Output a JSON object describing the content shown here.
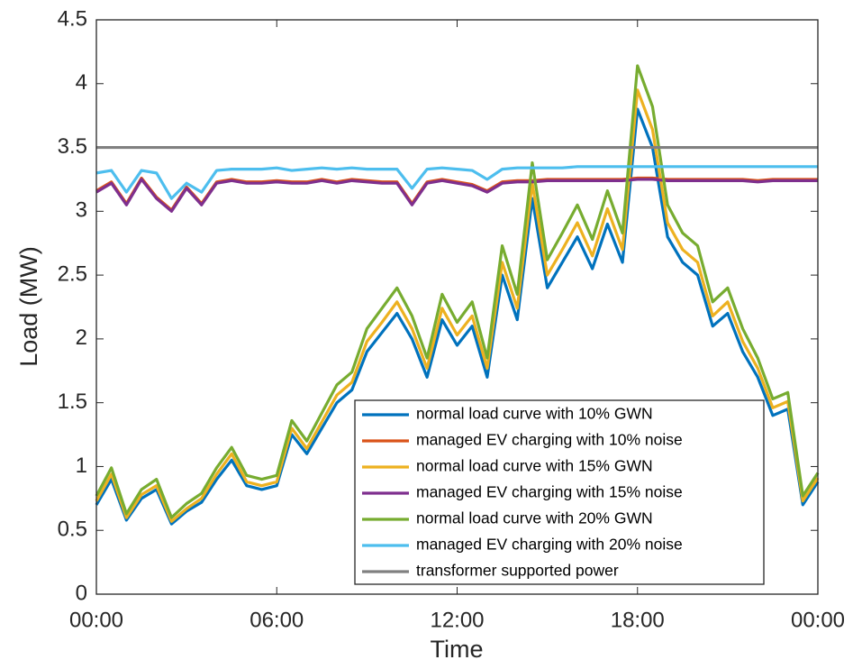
{
  "chart_data": {
    "type": "line",
    "xlabel": "Time",
    "ylabel": "Load (MW)",
    "x": [
      0,
      0.5,
      1,
      1.5,
      2,
      2.5,
      3,
      3.5,
      4,
      4.5,
      5,
      5.5,
      6,
      6.5,
      7,
      7.5,
      8,
      8.5,
      9,
      9.5,
      10,
      10.5,
      11,
      11.5,
      12,
      12.5,
      13,
      13.5,
      14,
      14.5,
      15,
      15.5,
      16,
      16.5,
      17,
      17.5,
      18,
      18.5,
      19,
      19.5,
      20,
      20.5,
      21,
      21.5,
      22,
      22.5,
      23,
      23.5,
      24
    ],
    "xlim": [
      0,
      24
    ],
    "xticks": [
      {
        "value": 0,
        "label": "00:00"
      },
      {
        "value": 6,
        "label": "06:00"
      },
      {
        "value": 12,
        "label": "12:00"
      },
      {
        "value": 18,
        "label": "18:00"
      },
      {
        "value": 24,
        "label": "00:00"
      }
    ],
    "ylim": [
      0,
      4.5
    ],
    "yticks": [
      0,
      0.5,
      1,
      1.5,
      2,
      2.5,
      3,
      3.5,
      4,
      4.5
    ],
    "grid": false,
    "legend_position": "lower-right",
    "series": [
      {
        "name": "normal load curve with 10% GWN",
        "color": "#0072BD",
        "values": [
          0.7,
          0.9,
          0.58,
          0.75,
          0.82,
          0.55,
          0.65,
          0.72,
          0.9,
          1.05,
          0.85,
          0.82,
          0.85,
          1.25,
          1.1,
          1.3,
          1.5,
          1.6,
          1.9,
          2.05,
          2.2,
          2.0,
          1.7,
          2.15,
          1.95,
          2.1,
          1.7,
          2.5,
          2.15,
          3.1,
          2.4,
          2.6,
          2.8,
          2.55,
          2.9,
          2.6,
          3.8,
          3.5,
          2.8,
          2.6,
          2.5,
          2.1,
          2.2,
          1.9,
          1.7,
          1.4,
          1.45,
          0.7,
          0.88
        ]
      },
      {
        "name": "managed EV charging with 10% noise",
        "color": "#D95319",
        "values": [
          3.16,
          3.23,
          3.06,
          3.26,
          3.11,
          3.01,
          3.19,
          3.06,
          3.23,
          3.25,
          3.23,
          3.23,
          3.24,
          3.23,
          3.23,
          3.25,
          3.23,
          3.25,
          3.24,
          3.23,
          3.23,
          3.06,
          3.23,
          3.25,
          3.23,
          3.21,
          3.16,
          3.23,
          3.24,
          3.24,
          3.25,
          3.25,
          3.25,
          3.25,
          3.25,
          3.25,
          3.26,
          3.26,
          3.25,
          3.25,
          3.25,
          3.25,
          3.25,
          3.25,
          3.24,
          3.25,
          3.25,
          3.25,
          3.25
        ]
      },
      {
        "name": "normal load curve with 15% GWN",
        "color": "#EDB120",
        "values": [
          0.73,
          0.94,
          0.6,
          0.78,
          0.85,
          0.57,
          0.67,
          0.75,
          0.94,
          1.1,
          0.88,
          0.85,
          0.88,
          1.3,
          1.14,
          1.35,
          1.56,
          1.66,
          1.98,
          2.13,
          2.29,
          2.08,
          1.77,
          2.24,
          2.03,
          2.18,
          1.77,
          2.6,
          2.24,
          3.22,
          2.5,
          2.7,
          2.91,
          2.65,
          3.02,
          2.7,
          3.95,
          3.64,
          2.91,
          2.7,
          2.6,
          2.18,
          2.29,
          1.98,
          1.77,
          1.46,
          1.51,
          0.73,
          0.91
        ]
      },
      {
        "name": "managed EV charging with 15% noise",
        "color": "#7E2F8E",
        "values": [
          3.15,
          3.22,
          3.05,
          3.25,
          3.1,
          3.0,
          3.18,
          3.05,
          3.22,
          3.24,
          3.22,
          3.22,
          3.23,
          3.22,
          3.22,
          3.24,
          3.22,
          3.24,
          3.23,
          3.22,
          3.22,
          3.05,
          3.22,
          3.24,
          3.22,
          3.2,
          3.15,
          3.22,
          3.23,
          3.23,
          3.24,
          3.24,
          3.24,
          3.24,
          3.24,
          3.24,
          3.25,
          3.25,
          3.24,
          3.24,
          3.24,
          3.24,
          3.24,
          3.24,
          3.23,
          3.24,
          3.24,
          3.24,
          3.24
        ]
      },
      {
        "name": "normal load curve with 20% GWN",
        "color": "#77AC30",
        "values": [
          0.77,
          0.99,
          0.63,
          0.82,
          0.9,
          0.6,
          0.71,
          0.79,
          0.99,
          1.15,
          0.93,
          0.9,
          0.93,
          1.36,
          1.2,
          1.42,
          1.64,
          1.74,
          2.08,
          2.24,
          2.4,
          2.18,
          1.85,
          2.35,
          2.13,
          2.29,
          1.85,
          2.73,
          2.35,
          3.38,
          2.62,
          2.83,
          3.05,
          2.78,
          3.16,
          2.83,
          4.14,
          3.82,
          3.05,
          2.83,
          2.73,
          2.29,
          2.4,
          2.08,
          1.85,
          1.53,
          1.58,
          0.77,
          0.95
        ]
      },
      {
        "name": "managed EV charging with 20% noise",
        "color": "#4DBEEE",
        "values": [
          3.3,
          3.32,
          3.15,
          3.32,
          3.3,
          3.1,
          3.22,
          3.15,
          3.32,
          3.33,
          3.33,
          3.33,
          3.34,
          3.32,
          3.33,
          3.34,
          3.33,
          3.34,
          3.33,
          3.33,
          3.33,
          3.18,
          3.33,
          3.34,
          3.33,
          3.32,
          3.25,
          3.33,
          3.34,
          3.34,
          3.34,
          3.34,
          3.35,
          3.35,
          3.35,
          3.35,
          3.35,
          3.35,
          3.35,
          3.35,
          3.35,
          3.35,
          3.35,
          3.35,
          3.35,
          3.35,
          3.35,
          3.35,
          3.35
        ]
      },
      {
        "name": "transformer supported power",
        "color": "#808080",
        "x": [
          0,
          24
        ],
        "values": [
          3.5,
          3.5
        ]
      }
    ]
  }
}
